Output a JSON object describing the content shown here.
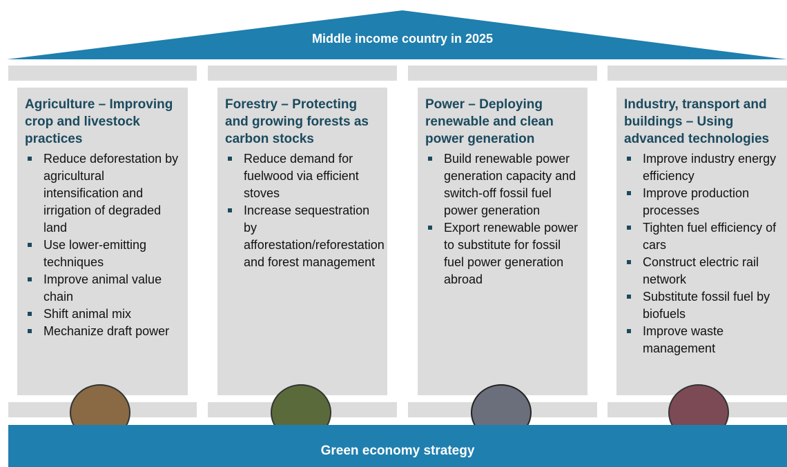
{
  "roof": {
    "title": "Middle income country in 2025"
  },
  "pillars": [
    {
      "title": "Agriculture – Improving crop and livestock practices",
      "bullets": [
        "Reduce deforestation by agricultural intensification and irrigation of degraded land",
        "Use lower-emitting techniques",
        "Improve animal value chain",
        "Shift animal mix",
        "Mechanize draft power"
      ]
    },
    {
      "title": "Forestry – Protecting and growing forests as carbon stocks",
      "bullets": [
        "Reduce demand for fuelwood via efficient stoves",
        "Increase sequestration by afforestation/reforestation and forest management"
      ]
    },
    {
      "title": "Power – Deploying renewable and clean power generation",
      "bullets": [
        "Build renewable power generation capacity and switch-off fossil fuel power generation",
        "Export renewable power to substitute for fossil fuel power generation abroad"
      ]
    },
    {
      "title": "Industry, transport and buildings – Using advanced technologies",
      "bullets": [
        "Improve industry energy efficiency",
        "Improve production processes",
        "Tighten fuel efficiency of cars",
        "Construct electric rail network",
        "Substitute fossil fuel by biofuels",
        "Improve waste management"
      ]
    }
  ],
  "base": {
    "title": "Green economy strategy"
  }
}
